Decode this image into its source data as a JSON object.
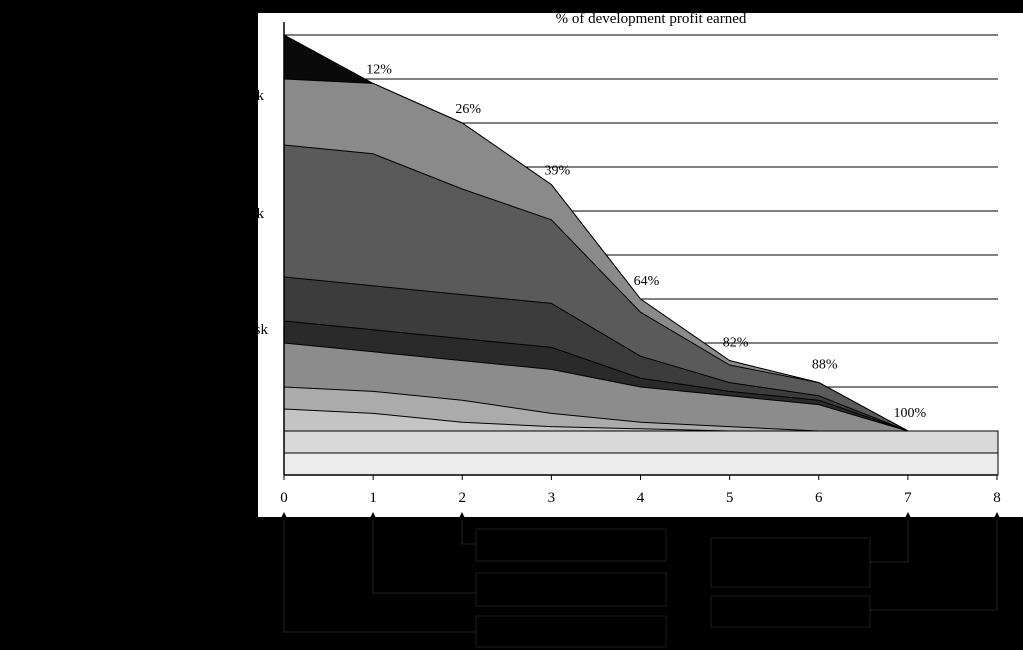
{
  "chart_data": {
    "type": "area",
    "title": "% of development profit earned",
    "x": [
      0,
      1,
      2,
      3,
      4,
      5,
      6,
      7,
      8
    ],
    "xlim": [
      0,
      8
    ],
    "ylim": [
      0,
      100
    ],
    "grid": true,
    "x_tick_labels": [
      "0",
      "1",
      "2",
      "3",
      "4",
      "5",
      "6",
      "7",
      "8"
    ],
    "side_label_fragments": [
      "k",
      "k",
      "k",
      "sk"
    ],
    "profit_labels": [
      {
        "x": 1,
        "label": "12%"
      },
      {
        "x": 2,
        "label": "26%"
      },
      {
        "x": 3,
        "label": "39%"
      },
      {
        "x": 4,
        "label": "64%"
      },
      {
        "x": 5,
        "label": "82%"
      },
      {
        "x": 6,
        "label": "88%"
      },
      {
        "x": 7,
        "label": "100%"
      }
    ],
    "stacked_boundaries": [
      [
        100,
        89,
        80,
        66,
        40,
        26,
        21,
        10,
        10
      ],
      [
        90,
        89,
        80,
        66,
        40,
        26,
        21,
        10,
        10
      ],
      [
        75,
        73,
        65,
        58,
        37,
        25,
        21,
        10,
        10
      ],
      [
        45,
        43,
        41,
        39,
        27,
        21,
        18,
        10,
        10
      ],
      [
        35,
        33,
        31,
        29,
        22,
        19,
        17,
        10,
        10
      ],
      [
        30,
        28,
        26,
        24,
        20,
        18,
        16,
        10,
        10
      ],
      [
        20,
        19,
        17,
        14,
        12,
        11,
        10,
        10,
        10
      ],
      [
        15,
        14,
        12,
        11,
        10.5,
        10,
        10,
        10,
        10
      ]
    ],
    "base_bands": [
      10,
      5
    ],
    "colors": {
      "background": "#000000",
      "plot_area": "#ffffff",
      "layers": [
        "#0a0a0a",
        "#8a8a8a",
        "#5a5a5a",
        "#3c3c3c",
        "#2a2a2a",
        "#8c8c8c",
        "#ababab",
        "#c4c4c4"
      ],
      "base_bands": [
        "#d9d9d9",
        "#ececec"
      ]
    }
  },
  "annotation_boxes": [
    {
      "label": ""
    },
    {
      "label": ""
    },
    {
      "label": ""
    },
    {
      "label": ""
    },
    {
      "label": ""
    }
  ]
}
